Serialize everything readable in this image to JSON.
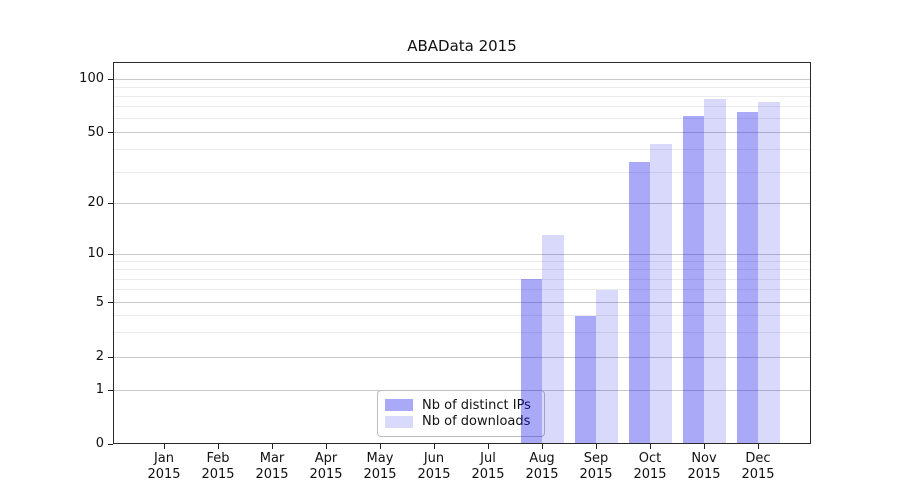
{
  "chart_data": {
    "type": "bar",
    "title": "ABAData 2015",
    "x_labels": [
      {
        "month": "Jan",
        "year": "2015"
      },
      {
        "month": "Feb",
        "year": "2015"
      },
      {
        "month": "Mar",
        "year": "2015"
      },
      {
        "month": "Apr",
        "year": "2015"
      },
      {
        "month": "May",
        "year": "2015"
      },
      {
        "month": "Jun",
        "year": "2015"
      },
      {
        "month": "Jul",
        "year": "2015"
      },
      {
        "month": "Aug",
        "year": "2015"
      },
      {
        "month": "Sep",
        "year": "2015"
      },
      {
        "month": "Oct",
        "year": "2015"
      },
      {
        "month": "Nov",
        "year": "2015"
      },
      {
        "month": "Dec",
        "year": "2015"
      }
    ],
    "series": [
      {
        "name": "Nb of distinct IPs",
        "color": "rgba(30,30,235,0.38)",
        "values": [
          0,
          0,
          0,
          0,
          0,
          0,
          0,
          7,
          4,
          34,
          62,
          65
        ]
      },
      {
        "name": "Nb of downloads",
        "color": "rgba(30,30,235,0.17)",
        "values": [
          0,
          0,
          0,
          0,
          0,
          0,
          0,
          13,
          6,
          43,
          77,
          74
        ]
      }
    ],
    "y_axis": {
      "scale": "symlog",
      "major_ticks": [
        0,
        1,
        2,
        5,
        10,
        20,
        50,
        100
      ],
      "minor_ticks": [
        3,
        4,
        6,
        7,
        8,
        9,
        30,
        40,
        60,
        70,
        80,
        90
      ],
      "ylim": [
        0,
        125
      ]
    },
    "grid": true,
    "legend_position": "lower-center"
  }
}
